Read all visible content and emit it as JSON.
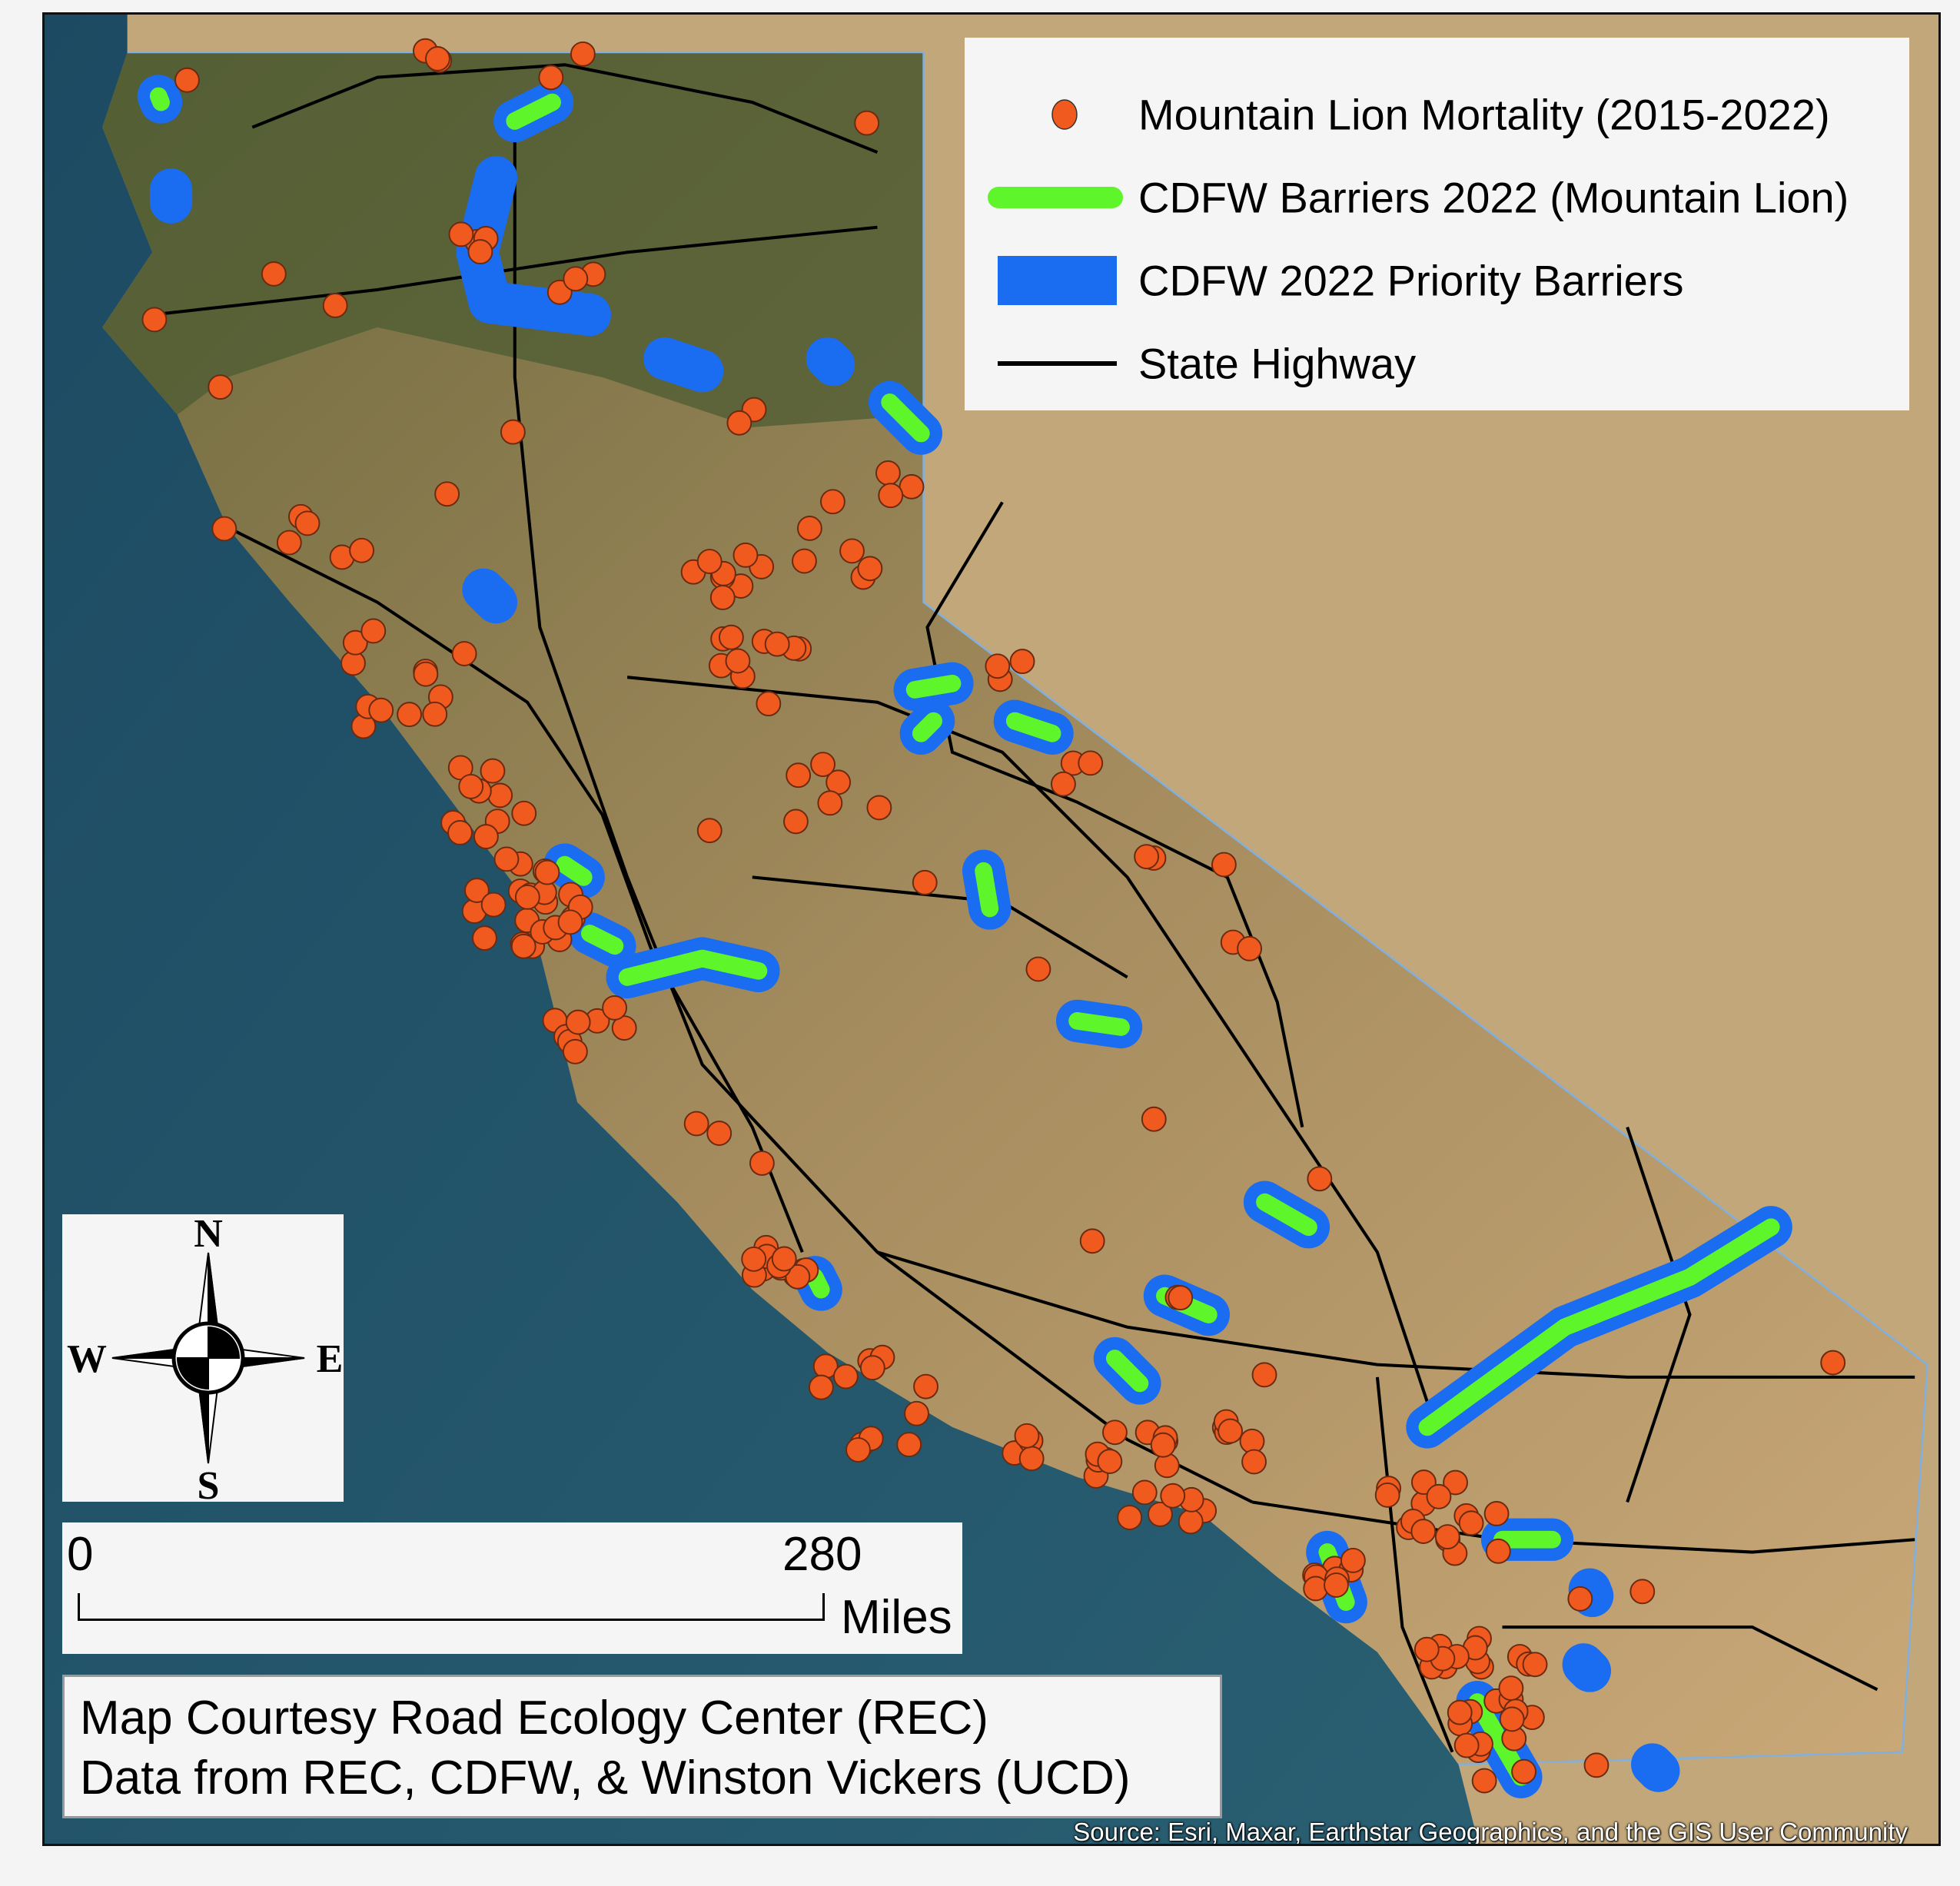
{
  "legend": {
    "items": [
      {
        "label": "Mountain Lion Mortality (2015-2022)",
        "symbol": "dot",
        "color": "#f05a1e"
      },
      {
        "label": "CDFW Barriers 2022 (Mountain Lion)",
        "symbol": "line",
        "color": "#5ef52a"
      },
      {
        "label": "CDFW 2022 Priority Barriers",
        "symbol": "patch",
        "color": "#1a6cf0"
      },
      {
        "label": "State Highway",
        "symbol": "line",
        "color": "#000000"
      }
    ]
  },
  "compass": {
    "n": "N",
    "s": "S",
    "e": "E",
    "w": "W"
  },
  "scale": {
    "start": "0",
    "end": "280",
    "unit": "Miles"
  },
  "credit": {
    "line1": "Map Courtesy Road Ecology Center (REC)",
    "line2": "Data from REC, CDFW, & Winston Vickers (UCD)"
  },
  "source": "Source: Esri, Maxar, Earthstar Geographics, and the GIS User Community",
  "colors": {
    "ocean": "#1f4f66",
    "land": "#b59a6a",
    "vegetation": "#5a6a3a",
    "mortality": "#f05a1e",
    "barrier_lion": "#5ef52a",
    "barrier_priority": "#1a6cf0",
    "highway": "#000000"
  }
}
